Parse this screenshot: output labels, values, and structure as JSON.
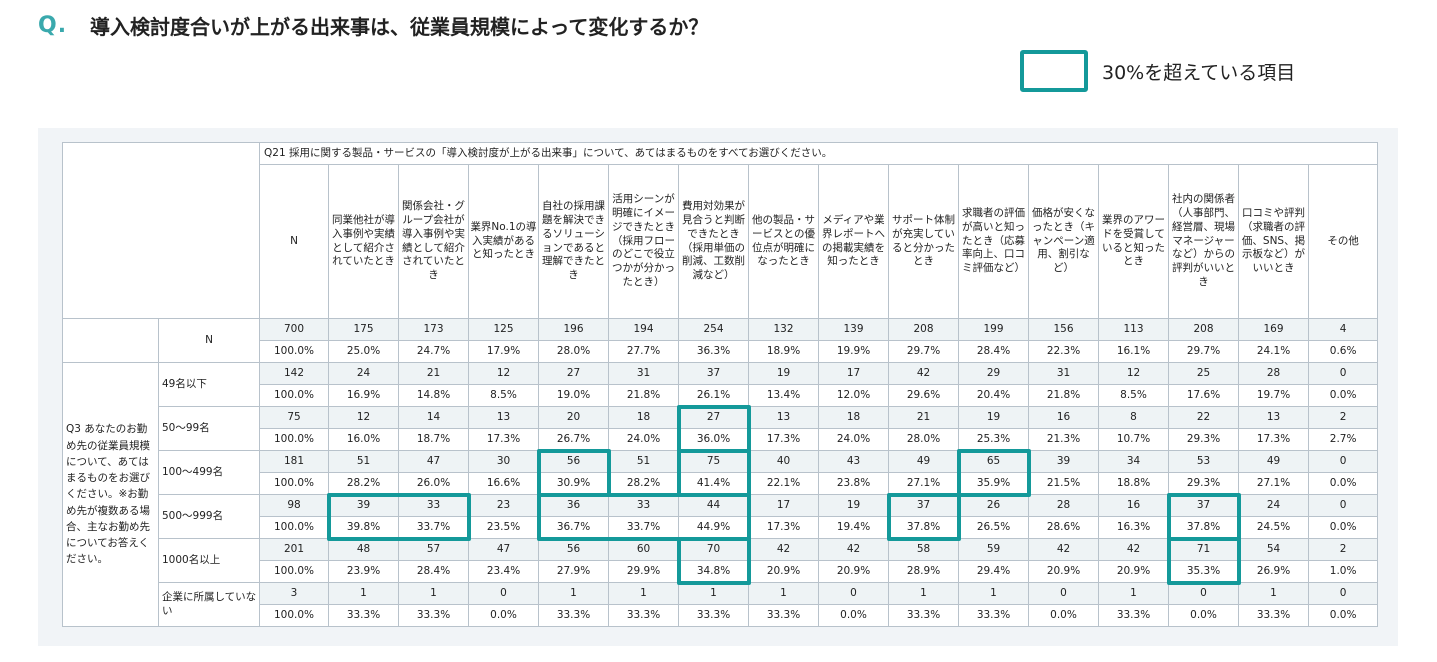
{
  "header": {
    "q_mark": "Q.",
    "title": "導入検討度合いが上がる出来事は、従業員規模によって変化するか？"
  },
  "legend": {
    "label": "30%を超えている項目",
    "color": "#14999a"
  },
  "table": {
    "question_header": "Q21 採用に関する製品・サービスの「導入検討度が上がる出来事」について、あてはまるものをすべてお選びください。",
    "row_question": "Q3 あなたのお勤め先の従業員規模について、あてはまるものをお選びください。※お勤め先が複数ある場合、主なお勤め先についてお答えください。",
    "columns": [
      "N",
      "同業他社が導入事例や実績として紹介されていたとき",
      "関係会社・グループ会社が導入事例や実績として紹介されていたとき",
      "業界No.1の導入実績があると知ったとき",
      "自社の採用課題を解決できるソリューションであると理解できたとき",
      "活用シーンが明確にイメージできたとき（採用フローのどこで役立つかが分かったとき）",
      "費用対効果が見合うと判断できたとき（採用単価の削減、工数削減など）",
      "他の製品・サービスとの優位点が明確になったとき",
      "メディアや業界レポートへの掲載実績を知ったとき",
      "サポート体制が充実していると分かったとき",
      "求職者の評価が高いと知ったとき（応募率向上、口コミ評価など）",
      "価格が安くなったとき（キャンペーン適用、割引など）",
      "業界のアワードを受賞していると知ったとき",
      "社内の関係者（人事部門、経営層、現場マネージャーなど）からの評判がいいとき",
      "口コミや評判（求職者の評価、SNS、掲示板など）がいいとき",
      "その他"
    ],
    "rows": [
      {
        "label": "N",
        "counts": [
          "700",
          "175",
          "173",
          "125",
          "196",
          "194",
          "254",
          "132",
          "139",
          "208",
          "199",
          "156",
          "113",
          "208",
          "169",
          "4"
        ],
        "pcts": [
          "100.0%",
          "25.0%",
          "24.7%",
          "17.9%",
          "28.0%",
          "27.7%",
          "36.3%",
          "18.9%",
          "19.9%",
          "29.7%",
          "28.4%",
          "22.3%",
          "16.1%",
          "29.7%",
          "24.1%",
          "0.6%"
        ]
      },
      {
        "label": "49名以下",
        "counts": [
          "142",
          "24",
          "21",
          "12",
          "27",
          "31",
          "37",
          "19",
          "17",
          "42",
          "29",
          "31",
          "12",
          "25",
          "28",
          "0"
        ],
        "pcts": [
          "100.0%",
          "16.9%",
          "14.8%",
          "8.5%",
          "19.0%",
          "21.8%",
          "26.1%",
          "13.4%",
          "12.0%",
          "29.6%",
          "20.4%",
          "21.8%",
          "8.5%",
          "17.6%",
          "19.7%",
          "0.0%"
        ]
      },
      {
        "label": "50〜99名",
        "counts": [
          "75",
          "12",
          "14",
          "13",
          "20",
          "18",
          "27",
          "13",
          "18",
          "21",
          "19",
          "16",
          "8",
          "22",
          "13",
          "2"
        ],
        "pcts": [
          "100.0%",
          "16.0%",
          "18.7%",
          "17.3%",
          "26.7%",
          "24.0%",
          "36.0%",
          "17.3%",
          "24.0%",
          "28.0%",
          "25.3%",
          "21.3%",
          "10.7%",
          "29.3%",
          "17.3%",
          "2.7%"
        ]
      },
      {
        "label": "100〜499名",
        "counts": [
          "181",
          "51",
          "47",
          "30",
          "56",
          "51",
          "75",
          "40",
          "43",
          "49",
          "65",
          "39",
          "34",
          "53",
          "49",
          "0"
        ],
        "pcts": [
          "100.0%",
          "28.2%",
          "26.0%",
          "16.6%",
          "30.9%",
          "28.2%",
          "41.4%",
          "22.1%",
          "23.8%",
          "27.1%",
          "35.9%",
          "21.5%",
          "18.8%",
          "29.3%",
          "27.1%",
          "0.0%"
        ]
      },
      {
        "label": "500〜999名",
        "counts": [
          "98",
          "39",
          "33",
          "23",
          "36",
          "33",
          "44",
          "17",
          "19",
          "37",
          "26",
          "28",
          "16",
          "37",
          "24",
          "0"
        ],
        "pcts": [
          "100.0%",
          "39.8%",
          "33.7%",
          "23.5%",
          "36.7%",
          "33.7%",
          "44.9%",
          "17.3%",
          "19.4%",
          "37.8%",
          "26.5%",
          "28.6%",
          "16.3%",
          "37.8%",
          "24.5%",
          "0.0%"
        ]
      },
      {
        "label": "1000名以上",
        "counts": [
          "201",
          "48",
          "57",
          "47",
          "56",
          "60",
          "70",
          "42",
          "42",
          "58",
          "59",
          "42",
          "42",
          "71",
          "54",
          "2"
        ],
        "pcts": [
          "100.0%",
          "23.9%",
          "28.4%",
          "23.4%",
          "27.9%",
          "29.9%",
          "34.8%",
          "20.9%",
          "20.9%",
          "28.9%",
          "29.4%",
          "20.9%",
          "20.9%",
          "35.3%",
          "26.9%",
          "1.0%"
        ]
      },
      {
        "label": "企業に所属していない",
        "counts": [
          "3",
          "1",
          "1",
          "0",
          "1",
          "1",
          "1",
          "1",
          "0",
          "1",
          "1",
          "0",
          "1",
          "0",
          "1",
          "0"
        ],
        "pcts": [
          "100.0%",
          "33.3%",
          "33.3%",
          "0.0%",
          "33.3%",
          "33.3%",
          "33.3%",
          "33.3%",
          "0.0%",
          "33.3%",
          "33.3%",
          "0.0%",
          "33.3%",
          "0.0%",
          "33.3%",
          "0.0%"
        ]
      }
    ]
  }
}
